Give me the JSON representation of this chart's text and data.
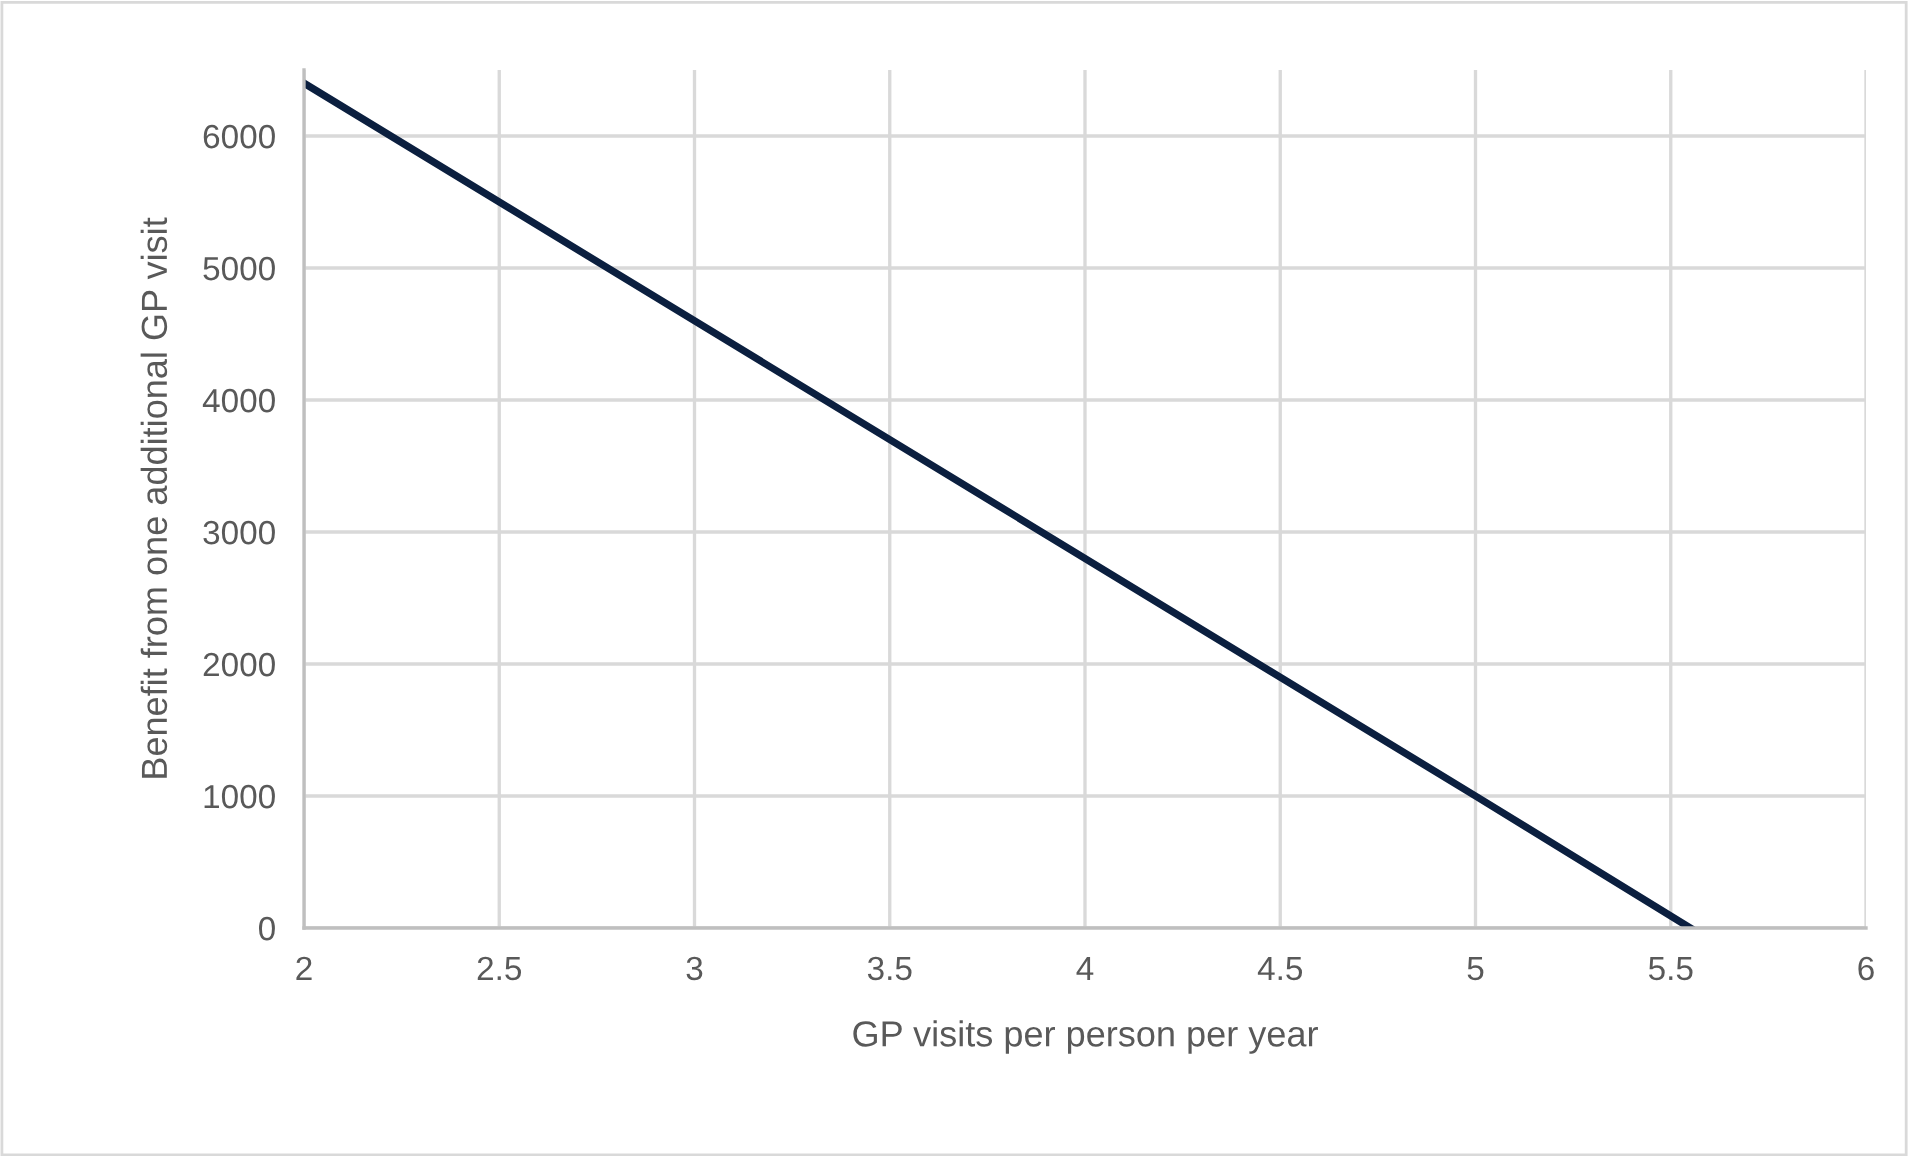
{
  "chart_data": {
    "type": "line",
    "xlabel": "GP visits per person per year",
    "ylabel": "Benefit from one additional GP visit",
    "x": [
      2,
      5,
      5.55
    ],
    "series": [
      {
        "color": "#0b1f3f",
        "values": [
          6400,
          1000,
          0
        ]
      }
    ],
    "xlim": [
      2,
      6
    ],
    "xticks": [
      2,
      2.5,
      3,
      3.5,
      4,
      4.5,
      5,
      5.5,
      6
    ],
    "ylim": [
      0,
      6500
    ],
    "yticks": [
      0,
      1000,
      2000,
      3000,
      4000,
      5000,
      6000
    ],
    "grid": true,
    "legend": false,
    "marker": "none",
    "line_style": "solid"
  }
}
